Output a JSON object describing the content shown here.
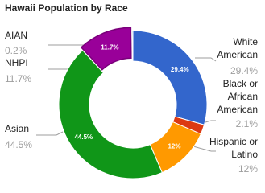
{
  "chart_data": {
    "type": "donut",
    "title": "Hawaii Population by Race",
    "categories": [
      "White American",
      "Black or African American",
      "Hispanic or Latino",
      "Asian",
      "NHPI",
      "AIAN"
    ],
    "values": [
      29.4,
      2.1,
      12,
      44.5,
      11.7,
      0.2
    ],
    "value_labels": [
      "29.4%",
      "2.1%",
      "12%",
      "44.5%",
      "11.7%",
      "0.2%"
    ],
    "colors": [
      "#3366cc",
      "#dc3912",
      "#ff9900",
      "#109618",
      "#990099",
      "#0099c6"
    ]
  }
}
